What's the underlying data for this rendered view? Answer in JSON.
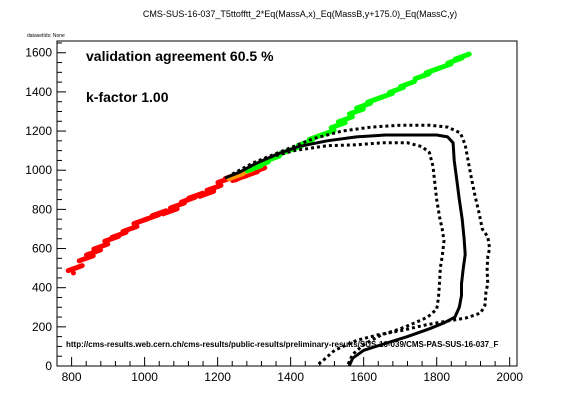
{
  "chart_data": {
    "type": "scatter",
    "title": "CMS-SUS-16-037_T5ttofftt_2*Eq(MassA,x)_Eq(MassB,y+175.0)_Eq(MassC,y)",
    "dataset_label": "datasetIds: None",
    "xlabel": "",
    "ylabel": "",
    "xlim": [
      760,
      2020
    ],
    "ylim": [
      0,
      1660
    ],
    "xticks": [
      800,
      1000,
      1200,
      1400,
      1600,
      1800,
      2000
    ],
    "yticks": [
      0,
      200,
      400,
      600,
      800,
      1000,
      1200,
      1400,
      1600
    ],
    "grid": false,
    "annotations": {
      "agreement": "validation agreement 60.5 %",
      "kfactor": "k-factor 1.00",
      "url": "http://cms-results.web.cern.ch/cms-results/public-results/preliminary-results/SUS-16-039/CMS-PAS-SUS-16-037_F"
    },
    "colors": {
      "excluded": "#ff0000",
      "allowed": "#00ff00",
      "border": "#ff9900",
      "contour": "#000000"
    },
    "series": [
      {
        "color": "excluded",
        "marker": "dash",
        "points": [
          [
            810,
            500
          ],
          [
            840,
            550
          ],
          [
            860,
            580
          ],
          [
            880,
            610
          ],
          [
            910,
            650
          ],
          [
            930,
            670
          ],
          [
            960,
            700
          ],
          [
            990,
            740
          ],
          [
            1020,
            760
          ],
          [
            1040,
            780
          ],
          [
            1070,
            790
          ],
          [
            1090,
            820
          ],
          [
            1120,
            850
          ],
          [
            1140,
            870
          ],
          [
            1170,
            880
          ],
          [
            1190,
            910
          ],
          [
            1220,
            950
          ],
          [
            1240,
            970
          ],
          [
            1260,
            960
          ],
          [
            1290,
            980
          ],
          [
            1310,
            1000
          ]
        ]
      },
      {
        "color": "excluded",
        "marker": "dot",
        "points": [
          [
            805,
            475
          ],
          [
            1250,
            950
          ]
        ]
      },
      {
        "color": "border",
        "marker": "dash",
        "points": [
          [
            1250,
            970
          ],
          [
            1275,
            990
          ]
        ]
      },
      {
        "color": "allowed",
        "marker": "dash",
        "points": [
          [
            1300,
            1010
          ],
          [
            1320,
            1030
          ],
          [
            1350,
            1060
          ],
          [
            1380,
            1090
          ],
          [
            1410,
            1110
          ],
          [
            1440,
            1140
          ],
          [
            1470,
            1170
          ],
          [
            1500,
            1190
          ],
          [
            1530,
            1230
          ],
          [
            1550,
            1260
          ],
          [
            1580,
            1300
          ],
          [
            1600,
            1330
          ],
          [
            1630,
            1360
          ],
          [
            1660,
            1380
          ],
          [
            1690,
            1410
          ],
          [
            1720,
            1440
          ],
          [
            1760,
            1480
          ],
          [
            1790,
            1510
          ],
          [
            1820,
            1530
          ],
          [
            1850,
            1560
          ],
          [
            1870,
            1580
          ]
        ]
      }
    ],
    "contours": [
      {
        "name": "expected",
        "style": "solid",
        "points": [
          [
            1220,
            960
          ],
          [
            1260,
            990
          ],
          [
            1300,
            1030
          ],
          [
            1360,
            1080
          ],
          [
            1420,
            1120
          ],
          [
            1500,
            1150
          ],
          [
            1580,
            1170
          ],
          [
            1660,
            1180
          ],
          [
            1740,
            1180
          ],
          [
            1800,
            1180
          ],
          [
            1830,
            1170
          ],
          [
            1845,
            1140
          ],
          [
            1848,
            1050
          ],
          [
            1855,
            950
          ],
          [
            1862,
            850
          ],
          [
            1870,
            750
          ],
          [
            1875,
            650
          ],
          [
            1878,
            570
          ],
          [
            1873,
            500
          ],
          [
            1868,
            420
          ],
          [
            1868,
            360
          ],
          [
            1862,
            300
          ],
          [
            1850,
            250
          ],
          [
            1820,
            220
          ],
          [
            1780,
            190
          ],
          [
            1720,
            150
          ],
          [
            1650,
            110
          ],
          [
            1600,
            80
          ],
          [
            1570,
            40
          ],
          [
            1560,
            0
          ]
        ]
      },
      {
        "name": "expected_plus",
        "style": "dotted",
        "points": [
          [
            1240,
            980
          ],
          [
            1300,
            1040
          ],
          [
            1380,
            1100
          ],
          [
            1460,
            1160
          ],
          [
            1540,
            1200
          ],
          [
            1620,
            1220
          ],
          [
            1700,
            1230
          ],
          [
            1780,
            1230
          ],
          [
            1830,
            1220
          ],
          [
            1865,
            1190
          ],
          [
            1878,
            1130
          ],
          [
            1885,
            1060
          ],
          [
            1895,
            960
          ],
          [
            1905,
            870
          ],
          [
            1915,
            790
          ],
          [
            1925,
            700
          ],
          [
            1940,
            660
          ],
          [
            1945,
            600
          ],
          [
            1940,
            560
          ],
          [
            1938,
            490
          ],
          [
            1940,
            420
          ],
          [
            1935,
            380
          ],
          [
            1932,
            310
          ],
          [
            1920,
            270
          ],
          [
            1880,
            245
          ],
          [
            1830,
            230
          ],
          [
            1770,
            210
          ],
          [
            1700,
            180
          ],
          [
            1640,
            160
          ],
          [
            1580,
            130
          ],
          [
            1520,
            80
          ],
          [
            1490,
            30
          ],
          [
            1470,
            0
          ]
        ]
      },
      {
        "name": "expected_minus",
        "style": "dotted",
        "points": [
          [
            1270,
            1000
          ],
          [
            1330,
            1060
          ],
          [
            1410,
            1100
          ],
          [
            1500,
            1125
          ],
          [
            1580,
            1130
          ],
          [
            1650,
            1140
          ],
          [
            1720,
            1140
          ],
          [
            1760,
            1120
          ],
          [
            1780,
            1090
          ],
          [
            1790,
            1020
          ],
          [
            1795,
            930
          ],
          [
            1800,
            850
          ],
          [
            1808,
            760
          ],
          [
            1815,
            700
          ],
          [
            1820,
            640
          ],
          [
            1815,
            560
          ],
          [
            1810,
            500
          ],
          [
            1808,
            430
          ],
          [
            1805,
            350
          ],
          [
            1800,
            290
          ],
          [
            1775,
            250
          ],
          [
            1740,
            220
          ],
          [
            1700,
            190
          ],
          [
            1650,
            160
          ],
          [
            1600,
            110
          ],
          [
            1570,
            60
          ],
          [
            1560,
            20
          ],
          [
            1555,
            0
          ]
        ]
      }
    ]
  }
}
